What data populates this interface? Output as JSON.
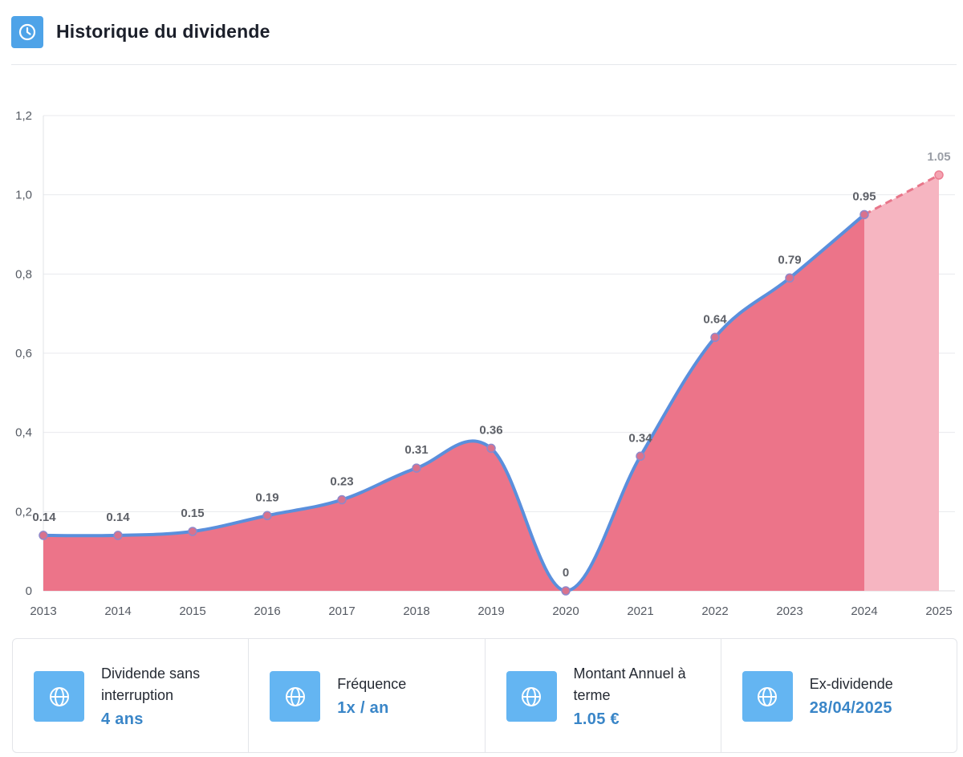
{
  "header": {
    "title": "Historique du dividende",
    "icon": "clock-icon"
  },
  "colors": {
    "accent": "#4ea3e8",
    "stat_icon_bg": "#64b5f2",
    "area": "#ec7489",
    "forecast_area": "#f6b5c1",
    "line": "#5a8fdc",
    "forecast_line": "#e8768a",
    "value_text": "#3a86c8"
  },
  "chart_data": {
    "type": "area",
    "title": "Historique du dividende",
    "xlabel": "",
    "ylabel": "",
    "ylim": [
      0,
      1.2
    ],
    "y_ticks": [
      "0",
      "0,2",
      "0,4",
      "0,6",
      "0,8",
      "1,0",
      "1,2"
    ],
    "grid": true,
    "categories": [
      "2013",
      "2014",
      "2015",
      "2016",
      "2017",
      "2018",
      "2019",
      "2020",
      "2021",
      "2022",
      "2023",
      "2024",
      "2025"
    ],
    "series": [
      {
        "name": "Dividende",
        "values": [
          0.14,
          0.14,
          0.15,
          0.19,
          0.23,
          0.31,
          0.36,
          0,
          0.34,
          0.64,
          0.79,
          0.95,
          1.05
        ],
        "labels": [
          "0.14",
          "0.14",
          "0.15",
          "0.19",
          "0.23",
          "0.31",
          "0.36",
          "0",
          "0.34",
          "0.64",
          "0.79",
          "0.95",
          "1.05"
        ],
        "forecast_from_index": 11
      }
    ]
  },
  "stats": [
    {
      "label": "Dividende sans interruption",
      "value": "4 ans",
      "icon": "globe-icon"
    },
    {
      "label": "Fréquence",
      "value": "1x / an",
      "icon": "globe-icon"
    },
    {
      "label": "Montant Annuel à terme",
      "value": "1.05 €",
      "icon": "globe-icon"
    },
    {
      "label": "Ex-dividende",
      "value": "28/04/2025",
      "icon": "globe-icon"
    }
  ]
}
